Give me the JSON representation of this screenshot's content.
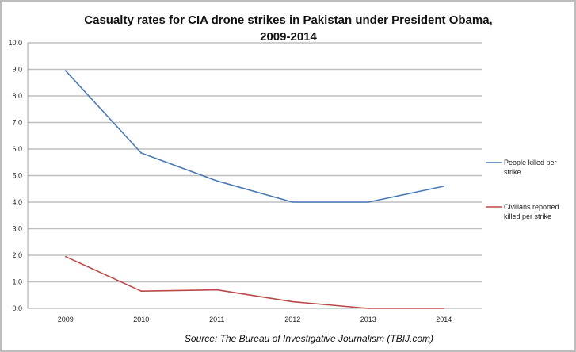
{
  "chart_data": {
    "type": "line",
    "title": "Casualty rates for CIA drone strikes in Pakistan under President Obama,",
    "title_line2": "2009-2014",
    "xlabel": "",
    "ylabel": "",
    "categories": [
      "2009",
      "2010",
      "2011",
      "2012",
      "2013",
      "2014"
    ],
    "series": [
      {
        "name": "People killed per strike",
        "name_lines": [
          "People killed per",
          "strike"
        ],
        "color": "#4a7ab5",
        "values": [
          8.95,
          5.85,
          4.8,
          4.0,
          4.0,
          4.6
        ]
      },
      {
        "name": "Civilians reported killed per strike",
        "name_lines": [
          "Civilians reported",
          "killed per strike"
        ],
        "color": "#b94a48",
        "values": [
          1.95,
          0.65,
          0.7,
          0.25,
          0.0,
          0.0
        ]
      }
    ],
    "ylim": [
      0,
      10
    ],
    "yticks": [
      "0.0",
      "1.0",
      "2.0",
      "3.0",
      "4.0",
      "5.0",
      "6.0",
      "7.0",
      "8.0",
      "9.0",
      "10.0"
    ],
    "grid": true,
    "legend_position": "right",
    "annotation": "Source: The Bureau of Investigative Journalism (TBIJ.com)"
  }
}
